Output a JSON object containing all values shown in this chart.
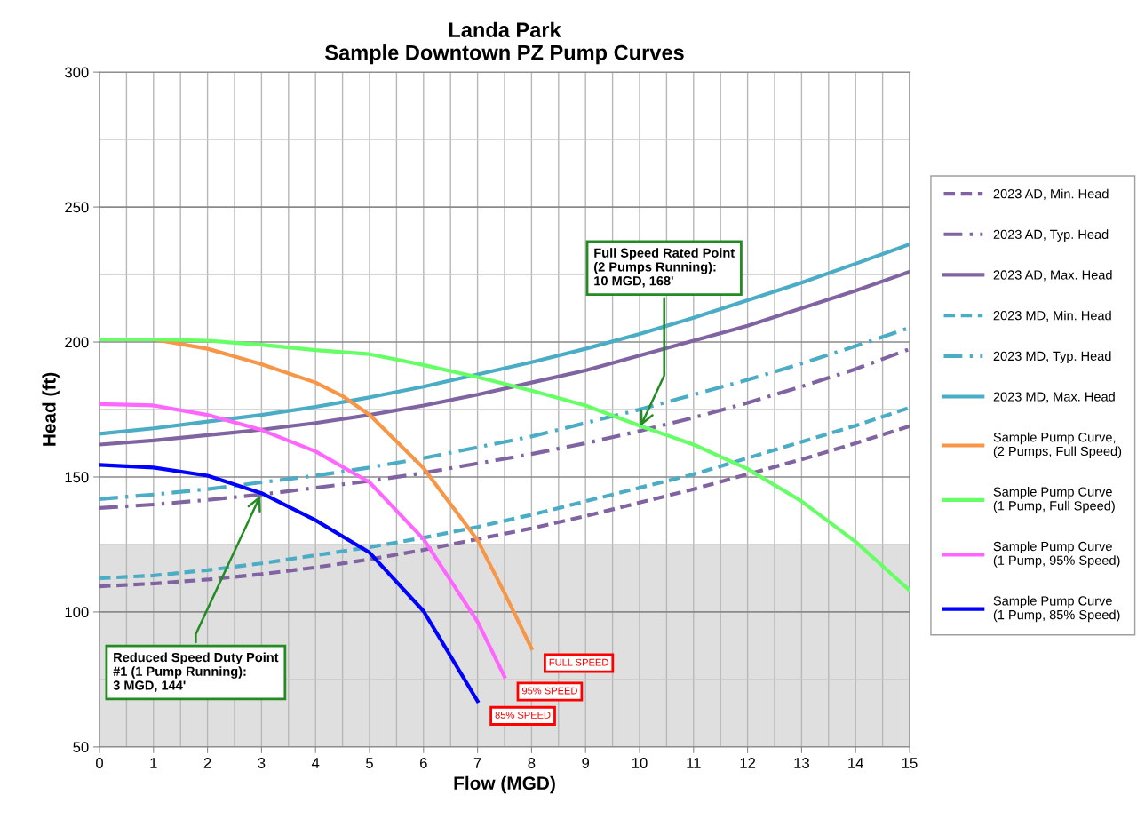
{
  "chart_data": {
    "type": "line",
    "title": "Landa Park",
    "subtitle": "Sample Downtown PZ Pump Curves",
    "xlabel": "Flow (MGD)",
    "ylabel": "Head (ft)",
    "xlim": [
      0,
      15
    ],
    "xticks": [
      0,
      1,
      2,
      3,
      4,
      5,
      6,
      7,
      8,
      9,
      10,
      11,
      12,
      13,
      14,
      15
    ],
    "ylim": [
      50,
      300
    ],
    "yticks": [
      50,
      100,
      150,
      200,
      250,
      300
    ],
    "grid": true,
    "legend": "right",
    "marker": "none",
    "bands": [
      {
        "axis": "y",
        "from": 50,
        "to": 125,
        "color": "#c4c4c4"
      }
    ],
    "series": [
      {
        "name": "2023 AD, Min. Head",
        "color": "#8064a2",
        "line_style": "dashed",
        "x": [
          0,
          1,
          2,
          3,
          4,
          5,
          6,
          7,
          8,
          9,
          10,
          11,
          12,
          13,
          14,
          15
        ],
        "values": [
          109.5,
          110.5,
          112,
          114,
          116.5,
          119.5,
          123,
          127,
          131,
          135.5,
          140.5,
          145.5,
          151,
          156.5,
          162.5,
          168.8
        ]
      },
      {
        "name": "2023 AD, Typ. Head",
        "color": "#8064a2",
        "line_style": "dashdot",
        "x": [
          0,
          1,
          2,
          3,
          4,
          5,
          6,
          7,
          8,
          9,
          10,
          11,
          12,
          13,
          14,
          15
        ],
        "values": [
          138.5,
          139.8,
          141.5,
          143.5,
          146,
          148.5,
          151.5,
          155,
          158.5,
          162.5,
          167,
          172,
          177.5,
          183.5,
          190,
          197.4
        ]
      },
      {
        "name": "2023 AD, Max. Head",
        "color": "#8064a2",
        "line_style": "solid",
        "x": [
          0,
          1,
          2,
          3,
          4,
          5,
          6,
          7,
          8,
          9,
          10,
          11,
          12,
          13,
          14,
          15
        ],
        "values": [
          162,
          163.5,
          165.5,
          167.5,
          170,
          173,
          176.5,
          180.5,
          185,
          189.5,
          195,
          200.5,
          206,
          212.5,
          219,
          226
        ]
      },
      {
        "name": "2023 MD, Min. Head",
        "color": "#4bacc6",
        "line_style": "dashed",
        "x": [
          0,
          1,
          2,
          3,
          4,
          5,
          6,
          7,
          8,
          9,
          10,
          11,
          12,
          13,
          14,
          15
        ],
        "values": [
          112.5,
          113.5,
          115.5,
          118,
          121,
          124,
          127.5,
          131.5,
          136,
          141,
          146,
          151,
          157,
          163,
          169,
          175.7
        ]
      },
      {
        "name": "2023 MD, Typ. Head",
        "color": "#4bacc6",
        "line_style": "dashdot",
        "x": [
          0,
          1,
          2,
          3,
          4,
          5,
          6,
          7,
          8,
          9,
          10,
          11,
          12,
          13,
          14,
          15
        ],
        "values": [
          141.8,
          143.5,
          145.5,
          148,
          150.5,
          153.5,
          157,
          161,
          165,
          170,
          175,
          180.5,
          186,
          192,
          198.5,
          205.3
        ]
      },
      {
        "name": "2023 MD, Max. Head",
        "color": "#4bacc6",
        "line_style": "solid",
        "x": [
          0,
          1,
          2,
          3,
          4,
          5,
          6,
          7,
          8,
          9,
          10,
          11,
          12,
          13,
          14,
          15
        ],
        "values": [
          166,
          168,
          170.5,
          173,
          176,
          179.5,
          183.5,
          188,
          192.5,
          197.5,
          203,
          209,
          215.5,
          222,
          229,
          236.2
        ]
      },
      {
        "name": "Sample Pump Curve,\n(2 Pumps, Full Speed)",
        "color": "#f79646",
        "line_style": "solid",
        "x": [
          0,
          1,
          2,
          3,
          4,
          4.5,
          5,
          6,
          7,
          7.5,
          8
        ],
        "values": [
          201,
          201,
          197.5,
          191.8,
          185,
          180,
          173,
          153.3,
          126.6,
          107,
          86.5
        ]
      },
      {
        "name": "Sample Pump Curve\n(1 Pump, Full Speed)",
        "color": "#66ff66",
        "line_style": "solid",
        "x": [
          0,
          1,
          2,
          3,
          4,
          5,
          5.5,
          6,
          7,
          8,
          9,
          10,
          11,
          12,
          13,
          14,
          15
        ],
        "values": [
          201,
          201,
          200.5,
          199,
          197,
          195.5,
          193.5,
          191.5,
          187,
          182,
          176.5,
          169,
          162,
          153,
          141,
          126,
          108
        ]
      },
      {
        "name": "Sample Pump Curve\n(1 Pump, 95% Speed)",
        "color": "#ff66ff",
        "line_style": "solid",
        "x": [
          0,
          1,
          2,
          3,
          4,
          5,
          6,
          7,
          7.5
        ],
        "values": [
          177,
          176.5,
          173,
          167.4,
          159.5,
          148,
          127,
          96.4,
          76
        ]
      },
      {
        "name": "Sample Pump Curve\n(1 Pump, 85% Speed)",
        "color": "#0000ff",
        "line_style": "solid",
        "x": [
          0,
          1,
          2,
          3,
          4,
          5,
          6,
          7
        ],
        "values": [
          154.5,
          153.5,
          150.5,
          144,
          134,
          122,
          100.3,
          67
        ]
      }
    ],
    "annotations": [
      {
        "text": "Full Speed Rated Point\n(2 Pumps Running):\n10 MGD, 168'",
        "x": 10,
        "y": 168
      },
      {
        "text": "Reduced Speed Duty Point\n#1 (1 Pump Running):\n3 MGD, 144'",
        "x": 3,
        "y": 144
      },
      {
        "text": "FULL SPEED",
        "x": 8,
        "y": 86.5
      },
      {
        "text": "95% SPEED",
        "x": 7.5,
        "y": 76
      },
      {
        "text": "85% SPEED",
        "x": 7,
        "y": 67
      }
    ]
  }
}
